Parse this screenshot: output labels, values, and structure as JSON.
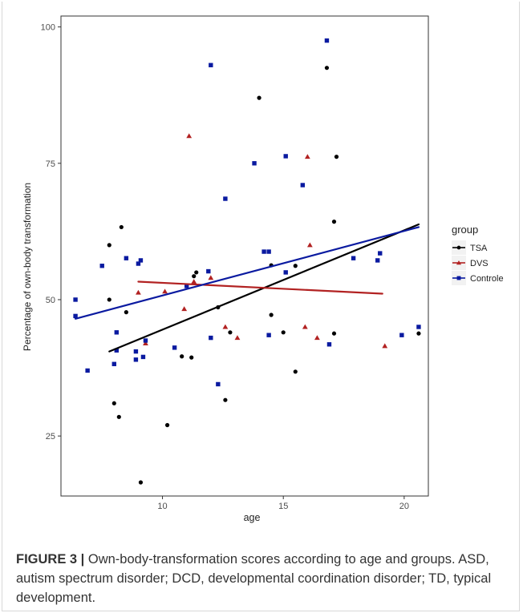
{
  "chart_data": {
    "type": "scatter",
    "title": "",
    "xlabel": "age",
    "ylabel": "Percentage of own-body transformation",
    "xlim": [
      5.8,
      21.0
    ],
    "ylim": [
      14,
      102
    ],
    "xticks": [
      10,
      15,
      20
    ],
    "yticks": [
      25,
      50,
      75,
      100
    ],
    "grid": false,
    "legend": {
      "title": "group",
      "placement": "right"
    },
    "series": [
      {
        "name": "TSA",
        "color": "#000000",
        "marker": "circle",
        "points": [
          [
            7.8,
            60
          ],
          [
            7.8,
            50
          ],
          [
            8.0,
            31
          ],
          [
            8.2,
            28.5
          ],
          [
            8.3,
            63.3
          ],
          [
            8.5,
            47.7
          ],
          [
            9.1,
            16.5
          ],
          [
            10.2,
            27
          ],
          [
            10.8,
            39.6
          ],
          [
            11.2,
            39.4
          ],
          [
            11.3,
            54.3
          ],
          [
            11.4,
            55
          ],
          [
            12.3,
            48.6
          ],
          [
            12.6,
            31.6
          ],
          [
            12.8,
            44
          ],
          [
            14.0,
            87
          ],
          [
            14.5,
            47.2
          ],
          [
            14.5,
            56.3
          ],
          [
            15.0,
            44
          ],
          [
            15.5,
            36.8
          ],
          [
            15.5,
            56.2
          ],
          [
            16.8,
            92.5
          ],
          [
            17.1,
            64.3
          ],
          [
            17.1,
            43.8
          ],
          [
            17.2,
            76.2
          ],
          [
            20.6,
            43.8
          ]
        ],
        "trend": [
          [
            7.8,
            40.5
          ],
          [
            20.6,
            63.8
          ]
        ]
      },
      {
        "name": "DVS",
        "color": "#b22222",
        "marker": "triangle",
        "points": [
          [
            9.0,
            51.3
          ],
          [
            9.3,
            42
          ],
          [
            10.1,
            51.5
          ],
          [
            10.9,
            48.3
          ],
          [
            11.1,
            80
          ],
          [
            11.3,
            53.3
          ],
          [
            12.0,
            54
          ],
          [
            12.6,
            45
          ],
          [
            13.1,
            43
          ],
          [
            15.9,
            45
          ],
          [
            16.0,
            76.2
          ],
          [
            16.1,
            60
          ],
          [
            16.4,
            43
          ],
          [
            19.2,
            41.5
          ]
        ],
        "trend": [
          [
            9.0,
            53.3
          ],
          [
            19.1,
            51.1
          ]
        ]
      },
      {
        "name": "Controle",
        "color": "#0a1aa0",
        "marker": "square",
        "points": [
          [
            6.4,
            50
          ],
          [
            6.4,
            47
          ],
          [
            6.9,
            37
          ],
          [
            7.5,
            56.2
          ],
          [
            8.0,
            38.2
          ],
          [
            8.1,
            44
          ],
          [
            8.1,
            40.7
          ],
          [
            8.5,
            57.6
          ],
          [
            8.9,
            40.5
          ],
          [
            8.9,
            39
          ],
          [
            9.0,
            56.6
          ],
          [
            9.1,
            57.2
          ],
          [
            9.2,
            39.5
          ],
          [
            9.3,
            42.5
          ],
          [
            10.5,
            41.2
          ],
          [
            11.0,
            52.5
          ],
          [
            11.9,
            55.2
          ],
          [
            12.0,
            43
          ],
          [
            12.0,
            93
          ],
          [
            12.3,
            34.5
          ],
          [
            12.6,
            68.5
          ],
          [
            13.8,
            75
          ],
          [
            14.2,
            58.8
          ],
          [
            14.4,
            58.8
          ],
          [
            14.4,
            43.5
          ],
          [
            15.1,
            55
          ],
          [
            15.1,
            76.3
          ],
          [
            15.8,
            71
          ],
          [
            16.8,
            97.5
          ],
          [
            16.9,
            41.8
          ],
          [
            17.9,
            57.6
          ],
          [
            18.9,
            57.2
          ],
          [
            19.0,
            58.5
          ],
          [
            19.9,
            43.5
          ],
          [
            20.6,
            45
          ]
        ],
        "trend": [
          [
            6.4,
            46.5
          ],
          [
            20.6,
            63.3
          ]
        ]
      }
    ]
  },
  "caption": {
    "label": "FIGURE 3 |",
    "text": " Own-body-transformation scores according to age and groups. ASD, autism spectrum disorder; DCD, developmental coordination disorder; TD, typical development."
  }
}
